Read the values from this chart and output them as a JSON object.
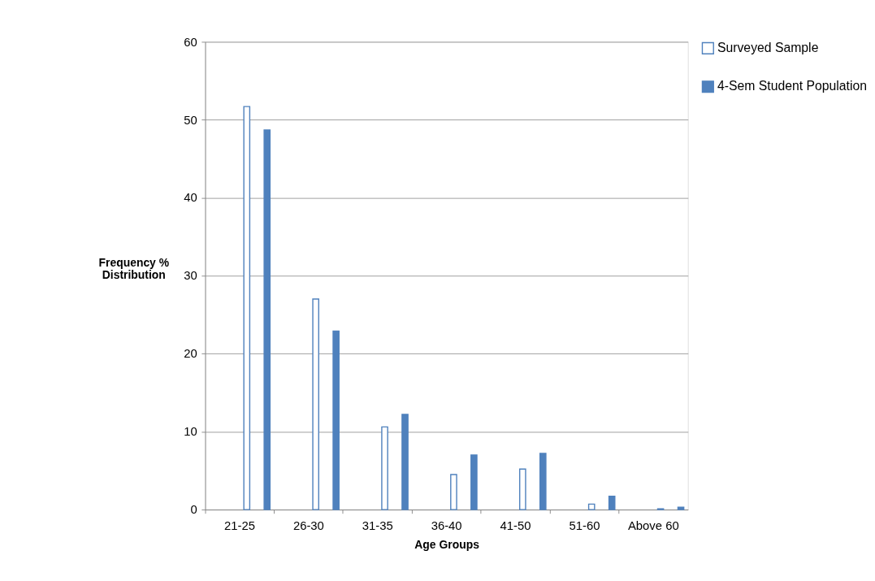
{
  "chart_data": {
    "type": "bar",
    "xlabel": "Age Groups",
    "ylabel": "Frequency %\nDistribution",
    "categories": [
      "21-25",
      "26-30",
      "31-35",
      "36-40",
      "41-50",
      "51-60",
      "Above 60"
    ],
    "series": [
      {
        "name": "Surveyed Sample",
        "color": "#ffffff",
        "values": [
          51.7,
          27.0,
          10.6,
          4.5,
          5.2,
          0.7,
          0.1
        ]
      },
      {
        "name": "4-Sem Student Population",
        "color": "#4f81bd",
        "values": [
          48.7,
          22.9,
          12.2,
          7.0,
          7.2,
          1.7,
          0.3
        ]
      }
    ],
    "ylim": [
      0,
      60
    ],
    "yticks": [
      0,
      10,
      20,
      30,
      40,
      50,
      60
    ],
    "grid": "y",
    "legend": "right"
  }
}
